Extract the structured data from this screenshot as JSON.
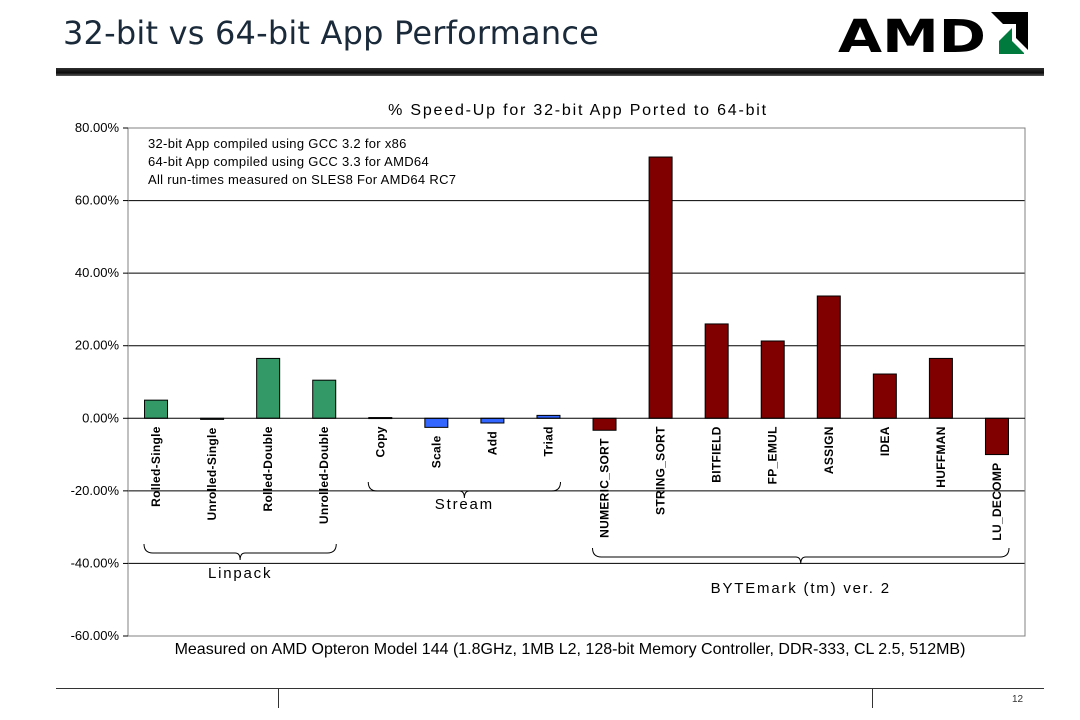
{
  "slide": {
    "title": "32-bit vs 64-bit App Performance",
    "logo_text": "AMD",
    "page_number": "12"
  },
  "chart_data": {
    "type": "bar",
    "title": "% Speed-Up for 32-bit App Ported to 64-bit",
    "xlabel": "Measured on AMD Opteron Model 144 (1.8GHz, 1MB L2, 128-bit Memory Controller, DDR-333, CL 2.5, 512MB)",
    "ylabel": "",
    "ylim": [
      -60,
      80
    ],
    "yticks": [
      80,
      60,
      40,
      20,
      0,
      -20,
      -40,
      -60
    ],
    "ytick_labels": [
      "80.00%",
      "60.00%",
      "40.00%",
      "20.00%",
      "0.00%",
      "-20.00%",
      "-40.00%",
      "-60.00%"
    ],
    "grid": true,
    "legend": "none",
    "notes": [
      "32-bit App compiled using GCC 3.2 for x86",
      "64-bit App compiled using GCC 3.3 for AMD64",
      "All run-times measured on SLES8 For AMD64 RC7"
    ],
    "categories": [
      "Rolled-Single",
      "Unrolled-Single",
      "Rolled-Double",
      "Unrolled-Double",
      "Copy",
      "Scale",
      "Add",
      "Triad",
      "NUMERIC_SORT",
      "STRING_SORT",
      "BITFIELD",
      "FP_EMUL",
      "ASSIGN",
      "IDEA",
      "HUFFMAN",
      "LU_DECOMP"
    ],
    "values": [
      5.0,
      -0.3,
      16.5,
      10.5,
      0.2,
      -2.5,
      -1.3,
      0.8,
      -3.3,
      72.0,
      26.0,
      21.3,
      33.7,
      12.2,
      16.5,
      -10.0
    ],
    "groups": [
      {
        "name": "Linpack",
        "start": 0,
        "end": 3,
        "color": "#339966"
      },
      {
        "name": "Stream",
        "start": 4,
        "end": 7,
        "color": "#3366ff"
      },
      {
        "name": "BYTEmark (tm) ver. 2",
        "start": 8,
        "end": 15,
        "color": "#800000"
      }
    ]
  }
}
